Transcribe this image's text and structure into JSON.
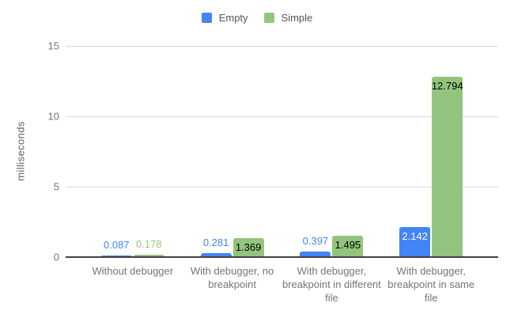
{
  "chart_data": {
    "type": "bar",
    "title": "",
    "xlabel": "",
    "ylabel": "milliseconds",
    "ylim": [
      0,
      15
    ],
    "yticks": [
      "0",
      "5",
      "10",
      "15"
    ],
    "grid": true,
    "legend_position": "top-center",
    "background": "#ffffff",
    "categories": [
      "Without debugger",
      "With debugger, no breakpoint",
      "With debugger, breakpoint in different file",
      "With debugger, breakpoint in same file"
    ],
    "series": [
      {
        "name": "Empty",
        "color": "#4285f4",
        "values": [
          0.087,
          0.281,
          0.397,
          2.142
        ],
        "value_labels": [
          "0.087",
          "0.281",
          "0.397",
          "2.142"
        ],
        "label_positions": [
          "above",
          "above",
          "above",
          "inside"
        ],
        "label_colors": [
          "#4285f4",
          "#4285f4",
          "#4285f4",
          "#ffffff"
        ]
      },
      {
        "name": "Simple",
        "color": "#93c47d",
        "values": [
          0.178,
          1.369,
          1.495,
          12.794
        ],
        "value_labels": [
          "0.178",
          "1.369",
          "1.495",
          "12.794"
        ],
        "label_positions": [
          "above",
          "inside",
          "inside",
          "inside"
        ],
        "label_colors": [
          "#93c47d",
          "#000000",
          "#000000",
          "#000000"
        ]
      }
    ],
    "axis_colors": {
      "gridline": "#d9d9d9",
      "baseline": "#424242",
      "tick_text": "#757575",
      "category_text": "#757575",
      "axis_title_text": "#616161",
      "legend_text": "#555555"
    }
  }
}
